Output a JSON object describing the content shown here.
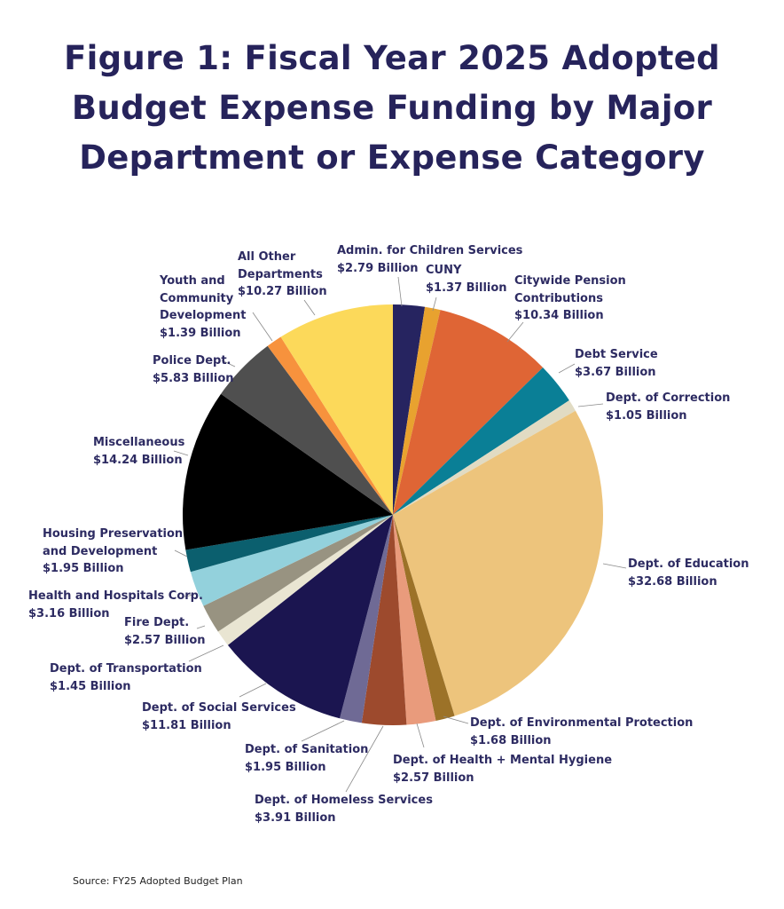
{
  "chart_data": {
    "type": "pie",
    "title": "Figure 1: Fiscal Year 2025 Adopted Budget Expense Funding by Major Department or Expense Category",
    "unit": "Billion",
    "start": "12 o'clock, clockwise",
    "slices": [
      {
        "name": "Admin. for Children Services",
        "value": 2.79,
        "label": "$2.79 Billion",
        "color": "#262460"
      },
      {
        "name": "CUNY",
        "value": 1.37,
        "label": "$1.37 Billion",
        "color": "#e8a22f"
      },
      {
        "name": "Citywide Pension\nContributions",
        "value": 10.34,
        "label": "$10.34 Billion",
        "color": "#df6535"
      },
      {
        "name": "Debt Service",
        "value": 3.67,
        "label": "$3.67 Billion",
        "color": "#0a7f96"
      },
      {
        "name": "Dept. of Correction",
        "value": 1.05,
        "label": "$1.05 Billion",
        "color": "#e1dbc3"
      },
      {
        "name": "Dept. of Education",
        "value": 32.68,
        "label": "$32.68 Billion",
        "color": "#edc47c"
      },
      {
        "name": "Dept. of Environmental Protection",
        "value": 1.68,
        "label": "$1.68 Billion",
        "color": "#9c7228"
      },
      {
        "name": "Dept. of Health + Mental Hygiene",
        "value": 2.57,
        "label": "$2.57 Billion",
        "color": "#e99b7c"
      },
      {
        "name": "Dept. of Homeless Services",
        "value": 3.91,
        "label": "$3.91 Billion",
        "color": "#9d4a2d"
      },
      {
        "name": "Dept. of Sanitation",
        "value": 1.95,
        "label": "$1.95 Billion",
        "color": "#6f6a95"
      },
      {
        "name": "Dept. of Social Services",
        "value": 11.81,
        "label": "$11.81 Billion",
        "color": "#1b1550"
      },
      {
        "name": "Dept. of Transportation",
        "value": 1.45,
        "label": "$1.45 Billion",
        "color": "#e9e5d2"
      },
      {
        "name": "Fire Dept.",
        "value": 2.57,
        "label": "$2.57 Billion",
        "color": "#989381"
      },
      {
        "name": "Health and Hospitals Corp.",
        "value": 3.16,
        "label": "$3.16 Billion",
        "color": "#93d1dc"
      },
      {
        "name": "Housing Preservation\nand Development",
        "value": 1.95,
        "label": "$1.95 Billion",
        "color": "#0b5f6e"
      },
      {
        "name": "Miscellaneous",
        "value": 14.24,
        "label": "$14.24 Billion",
        "color": "#000000"
      },
      {
        "name": "Police Dept.",
        "value": 5.83,
        "label": "$5.83 Billion",
        "color": "#4f4f4f"
      },
      {
        "name": "Youth and\nCommunity\nDevelopment",
        "value": 1.39,
        "label": "$1.39 Billion",
        "color": "#f7923d"
      },
      {
        "name": "All Other\nDepartments",
        "value": 10.27,
        "label": "$10.27 Billion",
        "color": "#fcd95a"
      }
    ]
  },
  "source": "Source: FY25 Adopted Budget Plan"
}
